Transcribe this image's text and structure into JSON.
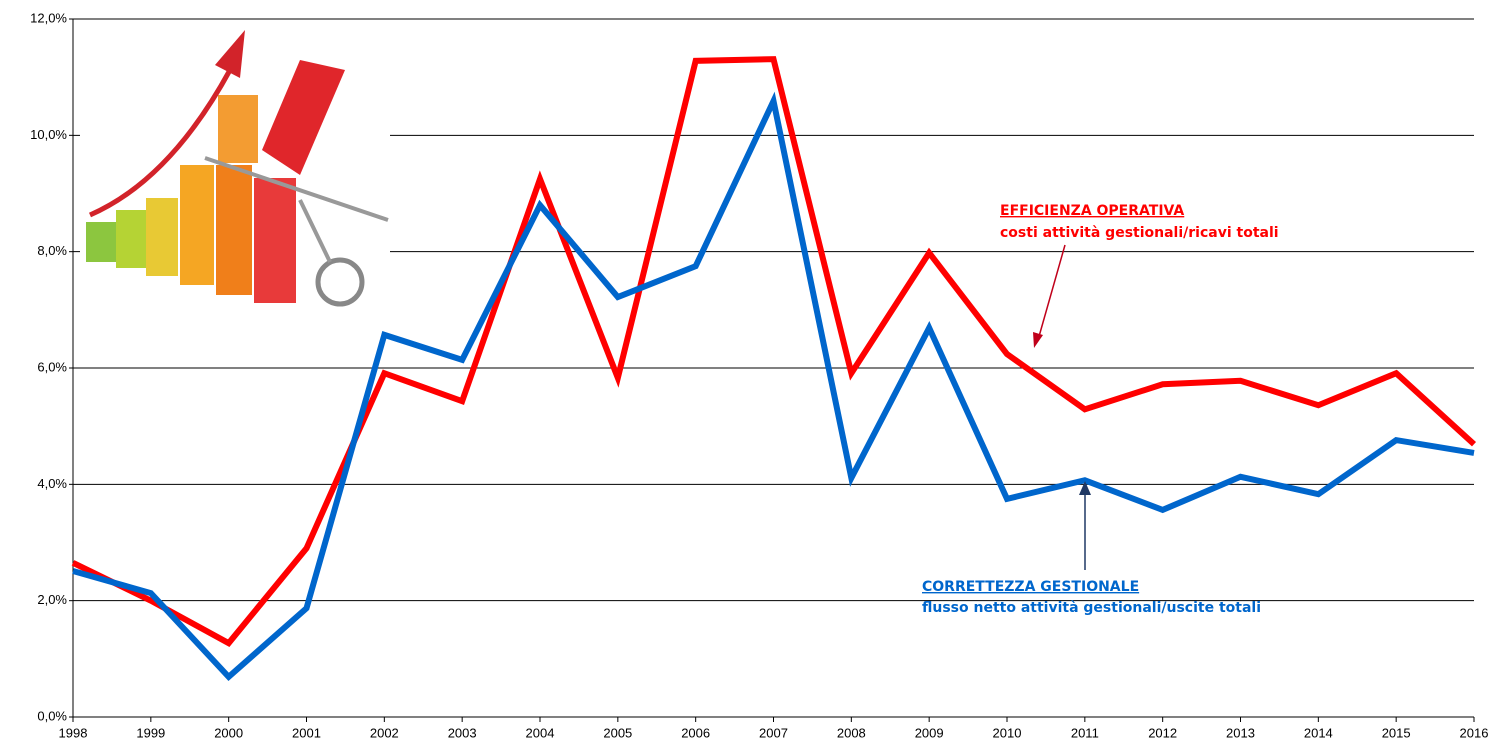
{
  "chart_data": {
    "type": "line",
    "categories": [
      "1998",
      "1999",
      "2000",
      "2001",
      "2002",
      "2003",
      "2004",
      "2005",
      "2006",
      "2007",
      "2008",
      "2009",
      "2010",
      "2011",
      "2012",
      "2013",
      "2014",
      "2015",
      "2016"
    ],
    "series": [
      {
        "name": "EFFICIENZA OPERATIVA",
        "color": "#ff0000",
        "values": [
          2.65,
          2.0,
          1.27,
          2.9,
          5.91,
          5.43,
          9.25,
          5.83,
          11.28,
          11.31,
          5.91,
          7.98,
          6.24,
          5.29,
          5.72,
          5.78,
          5.36,
          5.91,
          4.69
        ]
      },
      {
        "name": "CORRETTEZZA GESTIONALE",
        "color": "#0066cc",
        "values": [
          2.51,
          2.13,
          0.69,
          1.87,
          6.57,
          6.14,
          8.8,
          7.22,
          7.75,
          10.59,
          4.11,
          6.69,
          3.75,
          4.07,
          3.56,
          4.13,
          3.83,
          4.76,
          4.54
        ]
      }
    ],
    "annotations": [
      "costi attività gestionali/ricavi totali",
      "flusso netto attività gestionali/uscite totali"
    ],
    "ylim": [
      0,
      12
    ],
    "yticks": [
      {
        "value": 0,
        "label": "0,0%"
      },
      {
        "value": 2,
        "label": "2,0%"
      },
      {
        "value": 4,
        "label": "4,0%"
      },
      {
        "value": 6,
        "label": "6,0%"
      },
      {
        "value": 8,
        "label": "8,0%"
      },
      {
        "value": 10,
        "label": "10,0%"
      },
      {
        "value": 12,
        "label": "12,0%"
      }
    ],
    "grid": true
  }
}
